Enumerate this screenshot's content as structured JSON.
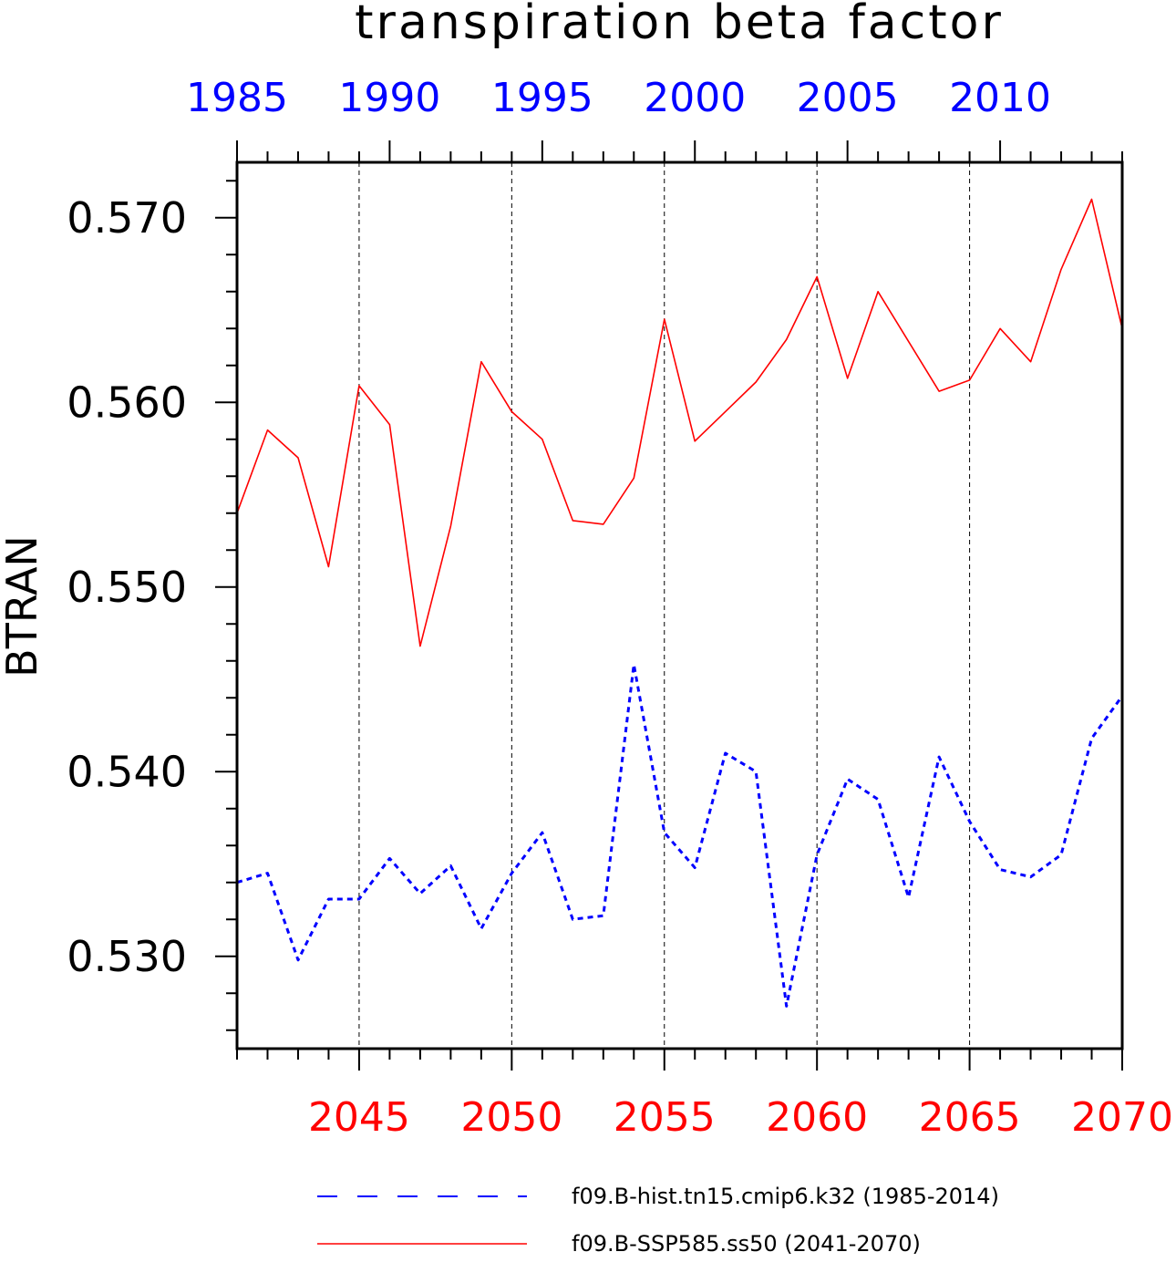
{
  "chart_data": {
    "type": "line",
    "title": "transpiration beta factor",
    "ylabel": "BTRAN",
    "xlabel": "",
    "ylim": [
      0.525,
      0.573
    ],
    "y_ticks": [
      "0.530",
      "0.540",
      "0.550",
      "0.560",
      "0.570"
    ],
    "grid": "vertical dashed lines at labeled years",
    "legend_position": "bottom",
    "top_axis": {
      "xlim": [
        1985,
        2014
      ],
      "tick_labels": [
        "1985",
        "1990",
        "1995",
        "2000",
        "2005",
        "2010"
      ]
    },
    "bottom_axis": {
      "xlim": [
        2041,
        2070
      ],
      "tick_labels": [
        "2045",
        "2050",
        "2055",
        "2060",
        "2065",
        "2070"
      ]
    },
    "series": [
      {
        "name": "f09.B-hist.tn15.cmip6.k32 (1985-2014)",
        "color": "#0000ff",
        "line_style": "dashed",
        "axis": "top",
        "x": [
          1985,
          1986,
          1987,
          1988,
          1989,
          1990,
          1991,
          1992,
          1993,
          1994,
          1995,
          1996,
          1997,
          1998,
          1999,
          2000,
          2001,
          2002,
          2003,
          2004,
          2005,
          2006,
          2007,
          2008,
          2009,
          2010,
          2011,
          2012,
          2013,
          2014
        ],
        "values": [
          0.534,
          0.5345,
          0.5298,
          0.5331,
          0.5331,
          0.5353,
          0.5334,
          0.5349,
          0.5315,
          0.5345,
          0.5367,
          0.532,
          0.5322,
          0.5458,
          0.5367,
          0.5348,
          0.541,
          0.54,
          0.5273,
          0.5355,
          0.5396,
          0.5385,
          0.5332,
          0.5408,
          0.5373,
          0.5347,
          0.5343,
          0.5355,
          0.5418,
          0.5441
        ]
      },
      {
        "name": "f09.B-SSP585.ss50 (2041-2070)",
        "color": "#ff0000",
        "line_style": "solid",
        "axis": "bottom",
        "x": [
          2041,
          2042,
          2043,
          2044,
          2045,
          2046,
          2047,
          2048,
          2049,
          2050,
          2051,
          2052,
          2053,
          2054,
          2055,
          2056,
          2057,
          2058,
          2059,
          2060,
          2061,
          2062,
          2063,
          2064,
          2065,
          2066,
          2067,
          2068,
          2069,
          2070
        ],
        "values": [
          0.554,
          0.5585,
          0.557,
          0.5511,
          0.5609,
          0.5588,
          0.5468,
          0.5533,
          0.5622,
          0.5595,
          0.558,
          0.5536,
          0.5534,
          0.5559,
          0.5645,
          0.5579,
          0.5595,
          0.5611,
          0.5634,
          0.5668,
          0.5613,
          0.566,
          0.5633,
          0.5606,
          0.5612,
          0.564,
          0.5622,
          0.5672,
          0.571,
          0.564
        ]
      }
    ]
  }
}
